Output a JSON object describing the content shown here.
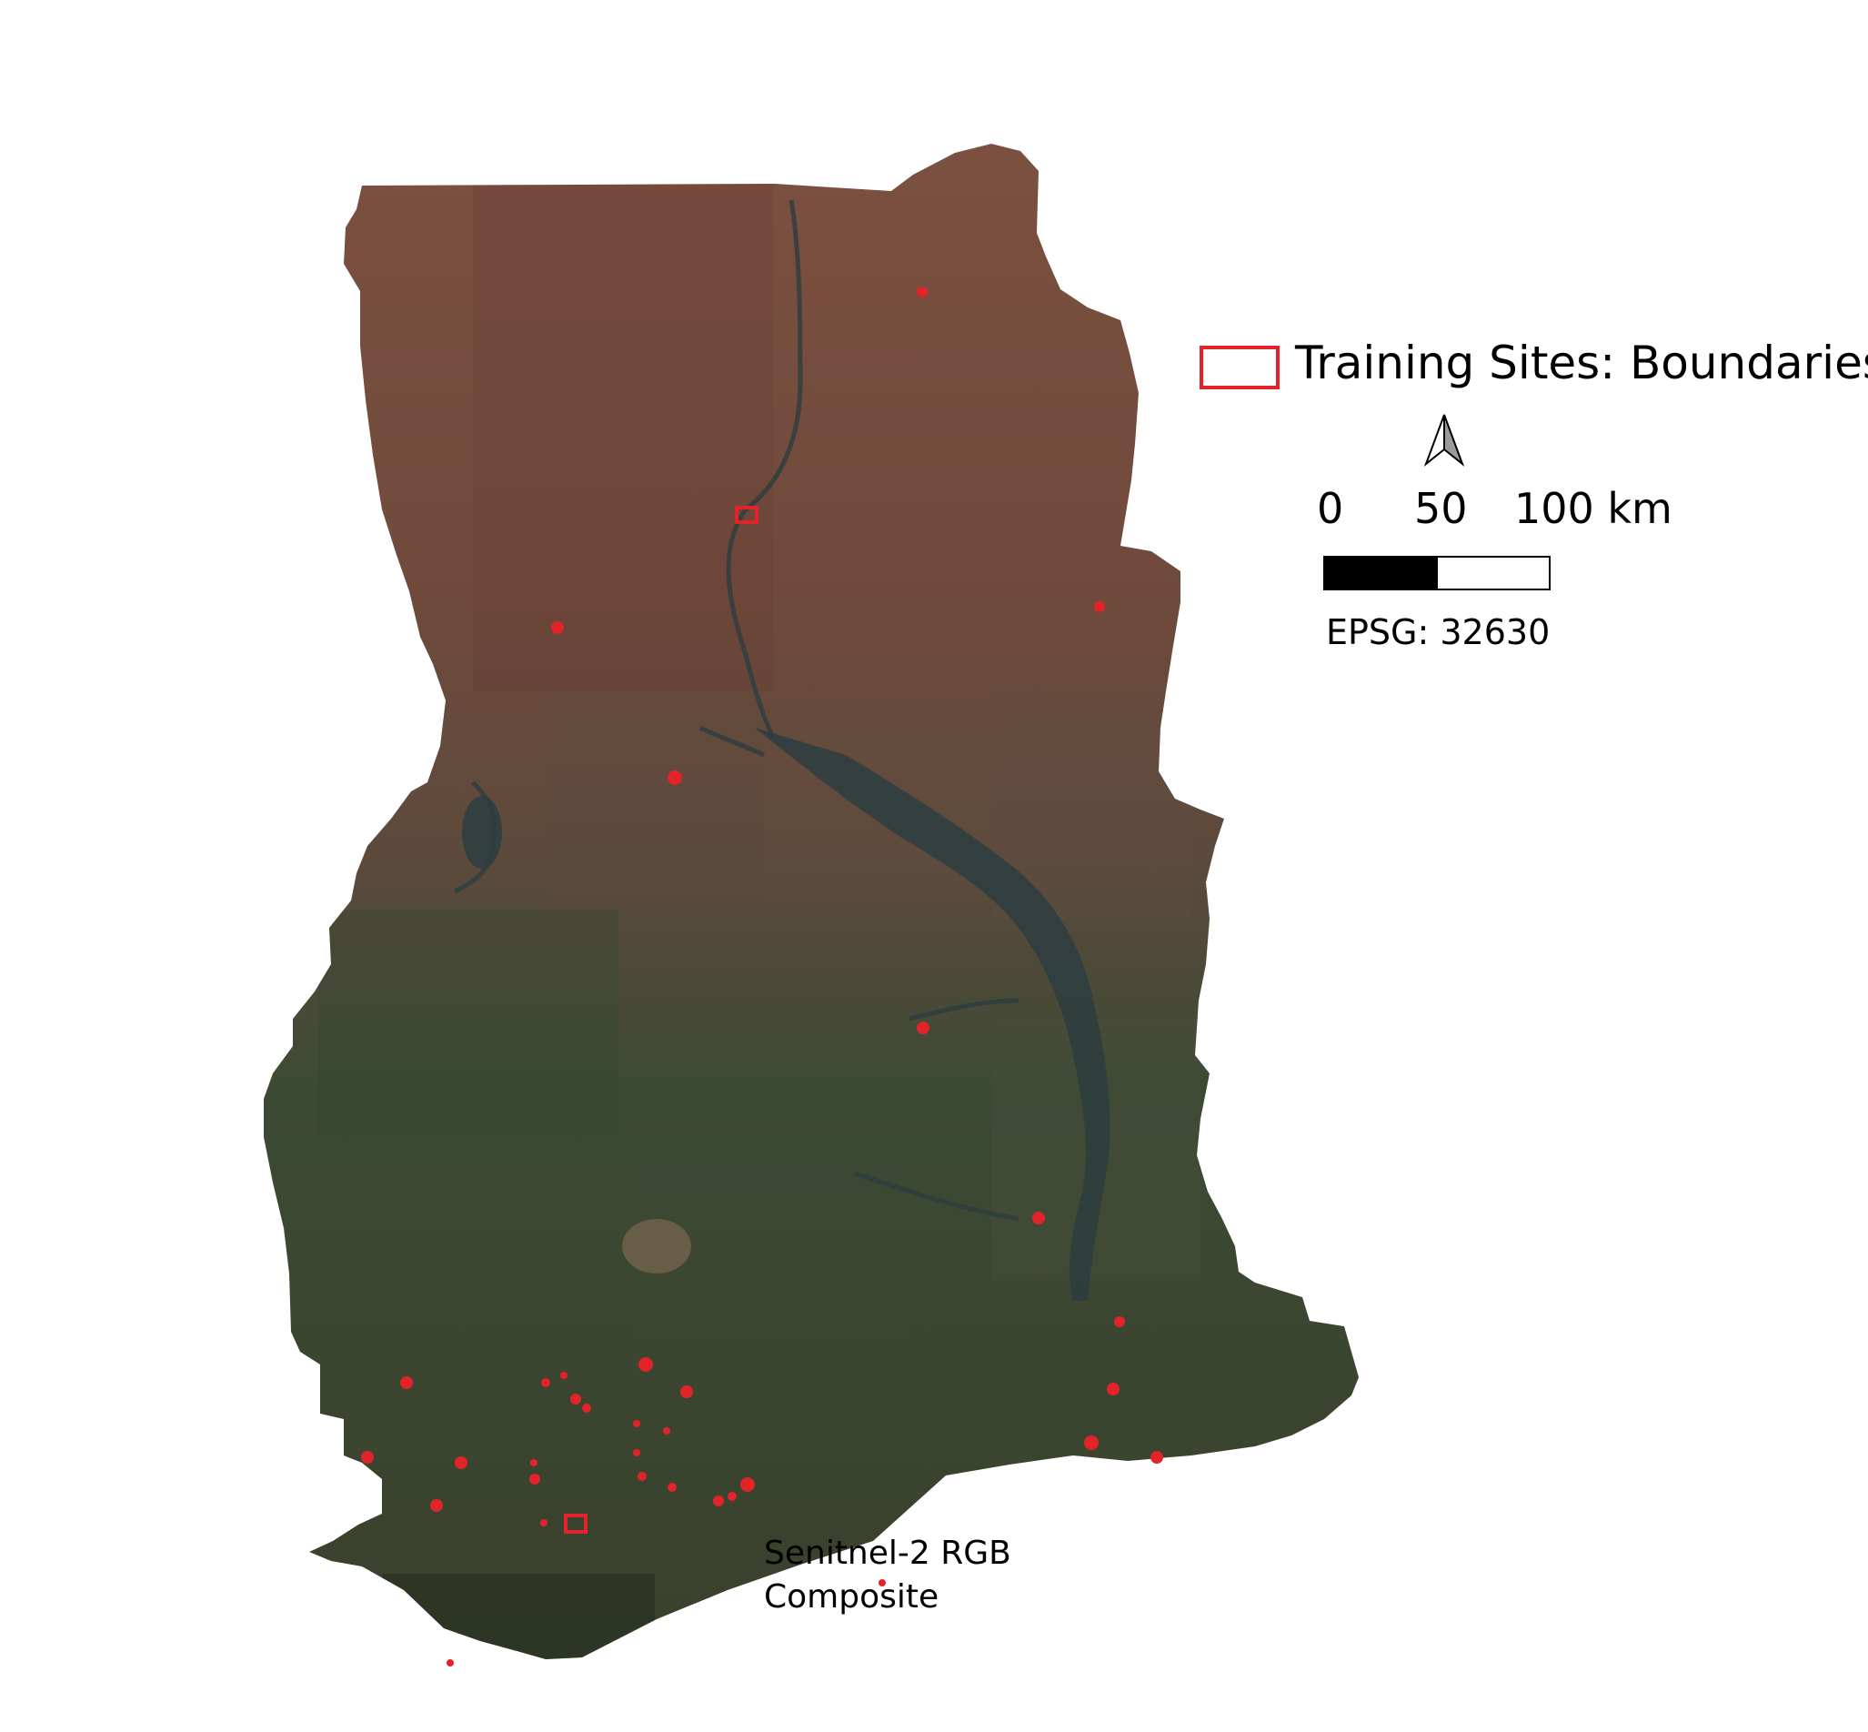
{
  "legend": {
    "swatch_color": "#e3232a",
    "label": "Training Sites: Boundaries"
  },
  "north_arrow": {
    "icon": "north-arrow-icon"
  },
  "scale_bar": {
    "ticks": [
      "0",
      "50",
      "100 km"
    ],
    "segment_colors": [
      "#000000",
      "#ffffff"
    ]
  },
  "crs": {
    "label": "EPSG: 32630"
  },
  "caption": {
    "line1": "Senitnel-2 RGB",
    "line2": "Composite"
  },
  "map": {
    "marker_color": "#e3232a",
    "surface_colors": {
      "north": "#7b5040",
      "middle": "#5d4a3c",
      "south": "#3d4a33",
      "coast": "#39402c",
      "water": "#2d3d40"
    }
  }
}
